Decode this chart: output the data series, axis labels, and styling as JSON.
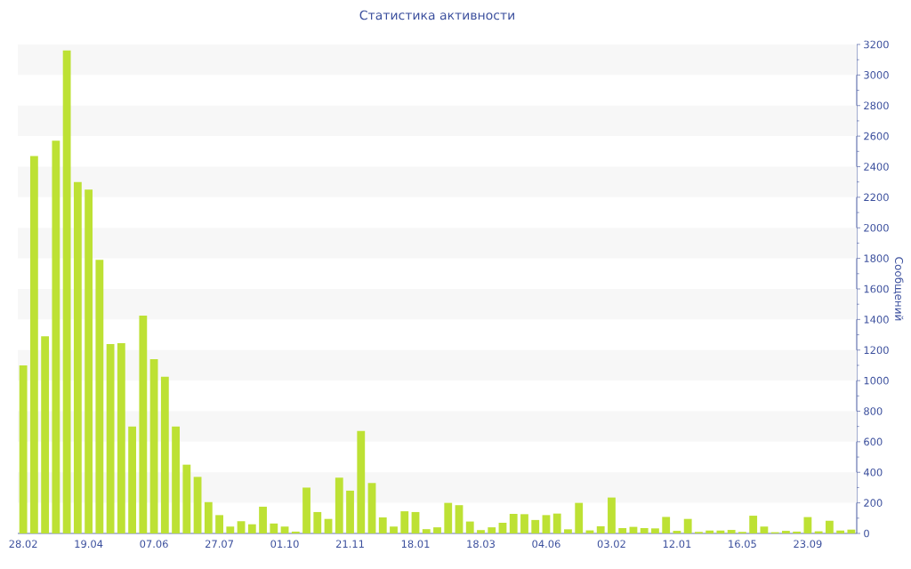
{
  "chart_data": {
    "type": "bar",
    "title": "Статистика активности",
    "ylabel": "Сообщений",
    "categories": [
      "28.02",
      null,
      null,
      null,
      null,
      null,
      "19.04",
      null,
      null,
      null,
      null,
      null,
      "07.06",
      null,
      null,
      null,
      null,
      null,
      "27.07",
      null,
      null,
      null,
      null,
      null,
      "01.10",
      null,
      null,
      null,
      null,
      null,
      "21.11",
      null,
      null,
      null,
      null,
      null,
      "18.01",
      null,
      null,
      null,
      null,
      null,
      "18.03",
      null,
      null,
      null,
      null,
      null,
      "04.06",
      null,
      null,
      null,
      null,
      null,
      "03.02",
      null,
      null,
      null,
      null,
      null,
      "12.01",
      null,
      null,
      null,
      null,
      null,
      "16.05",
      null,
      null,
      null,
      null,
      null,
      "23.09",
      null,
      null,
      null,
      null
    ],
    "values": [
      1100,
      2470,
      1290,
      2570,
      3160,
      2300,
      2250,
      1790,
      1240,
      1245,
      700,
      1425,
      1140,
      1025,
      700,
      450,
      370,
      205,
      120,
      45,
      80,
      60,
      175,
      65,
      45,
      12,
      300,
      140,
      95,
      365,
      280,
      670,
      330,
      105,
      45,
      145,
      140,
      28,
      40,
      200,
      185,
      78,
      22,
      40,
      70,
      128,
      126,
      88,
      120,
      130,
      27,
      200,
      20,
      47,
      235,
      35,
      43,
      35,
      33,
      108,
      17,
      95,
      10,
      19,
      19,
      23,
      10,
      116,
      45,
      8,
      17,
      12,
      107,
      14,
      83,
      19,
      25
    ],
    "color": "#bde134",
    "ylim": [
      0,
      3200
    ],
    "yticks": [
      0,
      200,
      400,
      600,
      800,
      1000,
      1200,
      1400,
      1600,
      1800,
      2000,
      2200,
      2400,
      2600,
      2800,
      3000,
      3200
    ],
    "bands": [
      {
        "axis": "y",
        "from": 200,
        "to": 400,
        "color": "#f7f7f7"
      },
      {
        "axis": "y",
        "from": 600,
        "to": 800,
        "color": "#f7f7f7"
      },
      {
        "axis": "y",
        "from": 1000,
        "to": 1200,
        "color": "#f7f7f7"
      },
      {
        "axis": "y",
        "from": 1400,
        "to": 1600,
        "color": "#f7f7f7"
      },
      {
        "axis": "y",
        "from": 1800,
        "to": 2000,
        "color": "#f7f7f7"
      },
      {
        "axis": "y",
        "from": 2200,
        "to": 2400,
        "color": "#f7f7f7"
      },
      {
        "axis": "y",
        "from": 2600,
        "to": 2800,
        "color": "#f7f7f7"
      },
      {
        "axis": "y",
        "from": 3000,
        "to": 3200,
        "color": "#f7f7f7"
      }
    ]
  }
}
